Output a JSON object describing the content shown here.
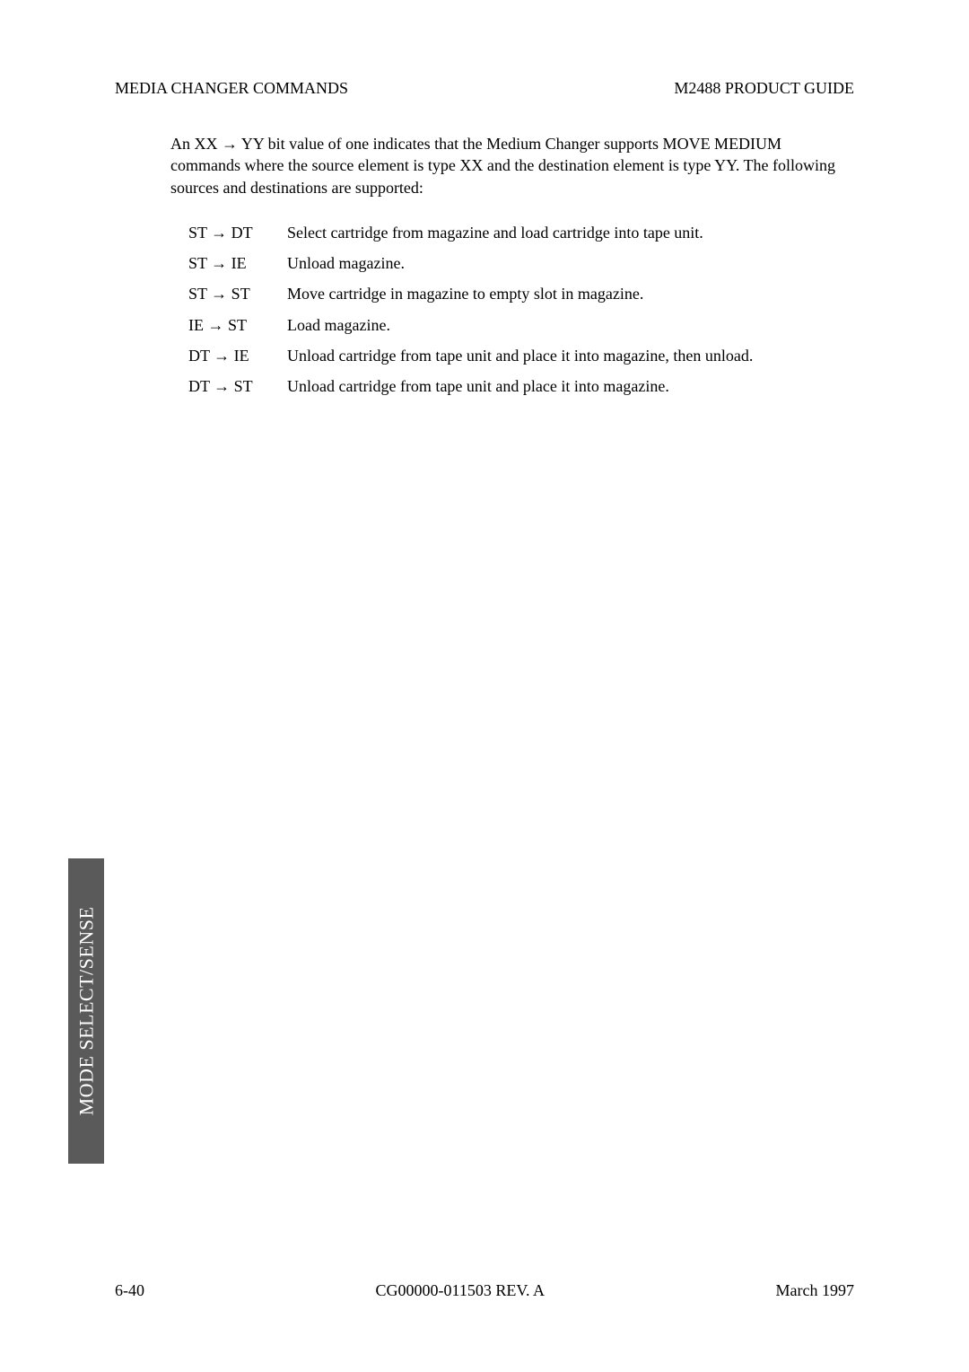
{
  "header": {
    "left": "MEDIA CHANGER COMMANDS",
    "right": "M2488 PRODUCT GUIDE"
  },
  "intro": {
    "text": "An XX → YY bit value of one indicates that the Medium Changer supports MOVE MEDIUM commands where the source element is type XX and the destination element is type YY. The following sources and destinations are supported:"
  },
  "definitions": [
    {
      "term": "ST → DT",
      "desc": "Select cartridge from magazine and load cartridge into tape unit."
    },
    {
      "term": "ST → IE",
      "desc": "Unload magazine."
    },
    {
      "term": "ST → ST",
      "desc": "Move cartridge in magazine to empty slot in magazine."
    },
    {
      "term": "IE → ST",
      "desc": "Load magazine."
    },
    {
      "term": "DT → IE",
      "desc": "Unload cartridge from tape unit and place it into magazine, then unload."
    },
    {
      "term": "DT → ST",
      "desc": "Unload cartridge from tape unit and place it into magazine."
    }
  ],
  "sideTab": {
    "label": "MODE SELECT/SENSE"
  },
  "footer": {
    "left": "6-40",
    "center": "CG00000-011503 REV. A",
    "right": "March 1997"
  },
  "colors": {
    "page_bg": "#ffffff",
    "text": "#000000",
    "tab_bg": "#5a5a5a",
    "tab_text": "#ffffff"
  },
  "typography": {
    "body_fontsize_pt": 14,
    "header_fontsize_pt": 14,
    "tab_fontsize_pt": 17,
    "font_family": "Times New Roman"
  }
}
